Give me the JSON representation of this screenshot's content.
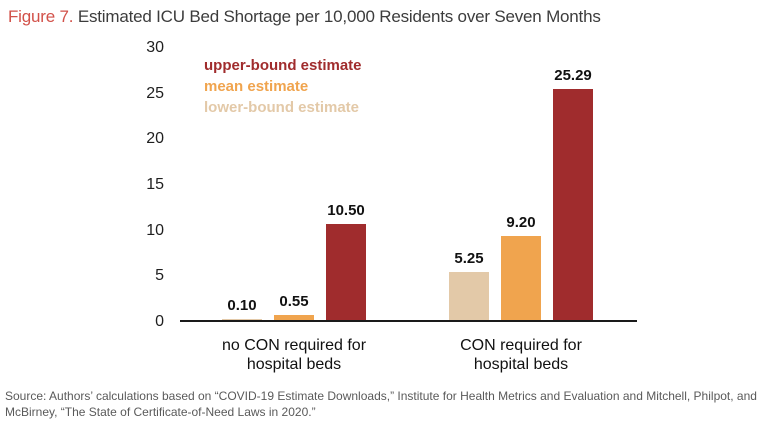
{
  "figure": {
    "label": "Figure 7.",
    "title": "Estimated ICU Bed Shortage per 10,000 Residents over Seven Months"
  },
  "chart_data": {
    "type": "bar",
    "title": "Estimated ICU Bed Shortage per 10,000 Residents over Seven Months",
    "categories": [
      {
        "lines": [
          "no CON required for",
          "hospital beds"
        ]
      },
      {
        "lines": [
          "CON required for",
          "hospital beds"
        ]
      }
    ],
    "series": [
      {
        "name": "lower-bound estimate",
        "color": "#E3C9A8",
        "values": [
          0.1,
          5.25
        ],
        "value_labels": [
          "0.10",
          "5.25"
        ]
      },
      {
        "name": "mean estimate",
        "color": "#F0A44E",
        "values": [
          0.55,
          9.2
        ],
        "value_labels": [
          "0.55",
          "9.20"
        ]
      },
      {
        "name": "upper-bound estimate",
        "color": "#A02C2D",
        "values": [
          10.5,
          25.29
        ],
        "value_labels": [
          "10.50",
          "25.29"
        ]
      }
    ],
    "legend": [
      {
        "label": "upper-bound estimate",
        "color": "#A02C2D"
      },
      {
        "label": "mean estimate",
        "color": "#F0A44E"
      },
      {
        "label": "lower-bound estimate",
        "color": "#E3C9A8"
      }
    ],
    "legend_position": "top-left-inside",
    "y_ticks": [
      30,
      25,
      20,
      15,
      10,
      5,
      0
    ],
    "ylim": [
      0,
      30
    ],
    "xlabel": "",
    "ylabel": "",
    "grid": false
  },
  "source_note": {
    "lines": [
      "Source: Authors’ calculations based on “COVID-19 Estimate Downloads,” Institute for Health Metrics and Evaluation and Mitchell, Philpot, and",
      "McBirney, “The State of Certificate-of-Need Laws in 2020.”"
    ]
  },
  "colors": {
    "figure_label": "#D25149",
    "title_text": "#3C3C3C",
    "axis_line": "#1A1A1A",
    "value_label": "#111111",
    "source_text": "#5A5A5A"
  }
}
